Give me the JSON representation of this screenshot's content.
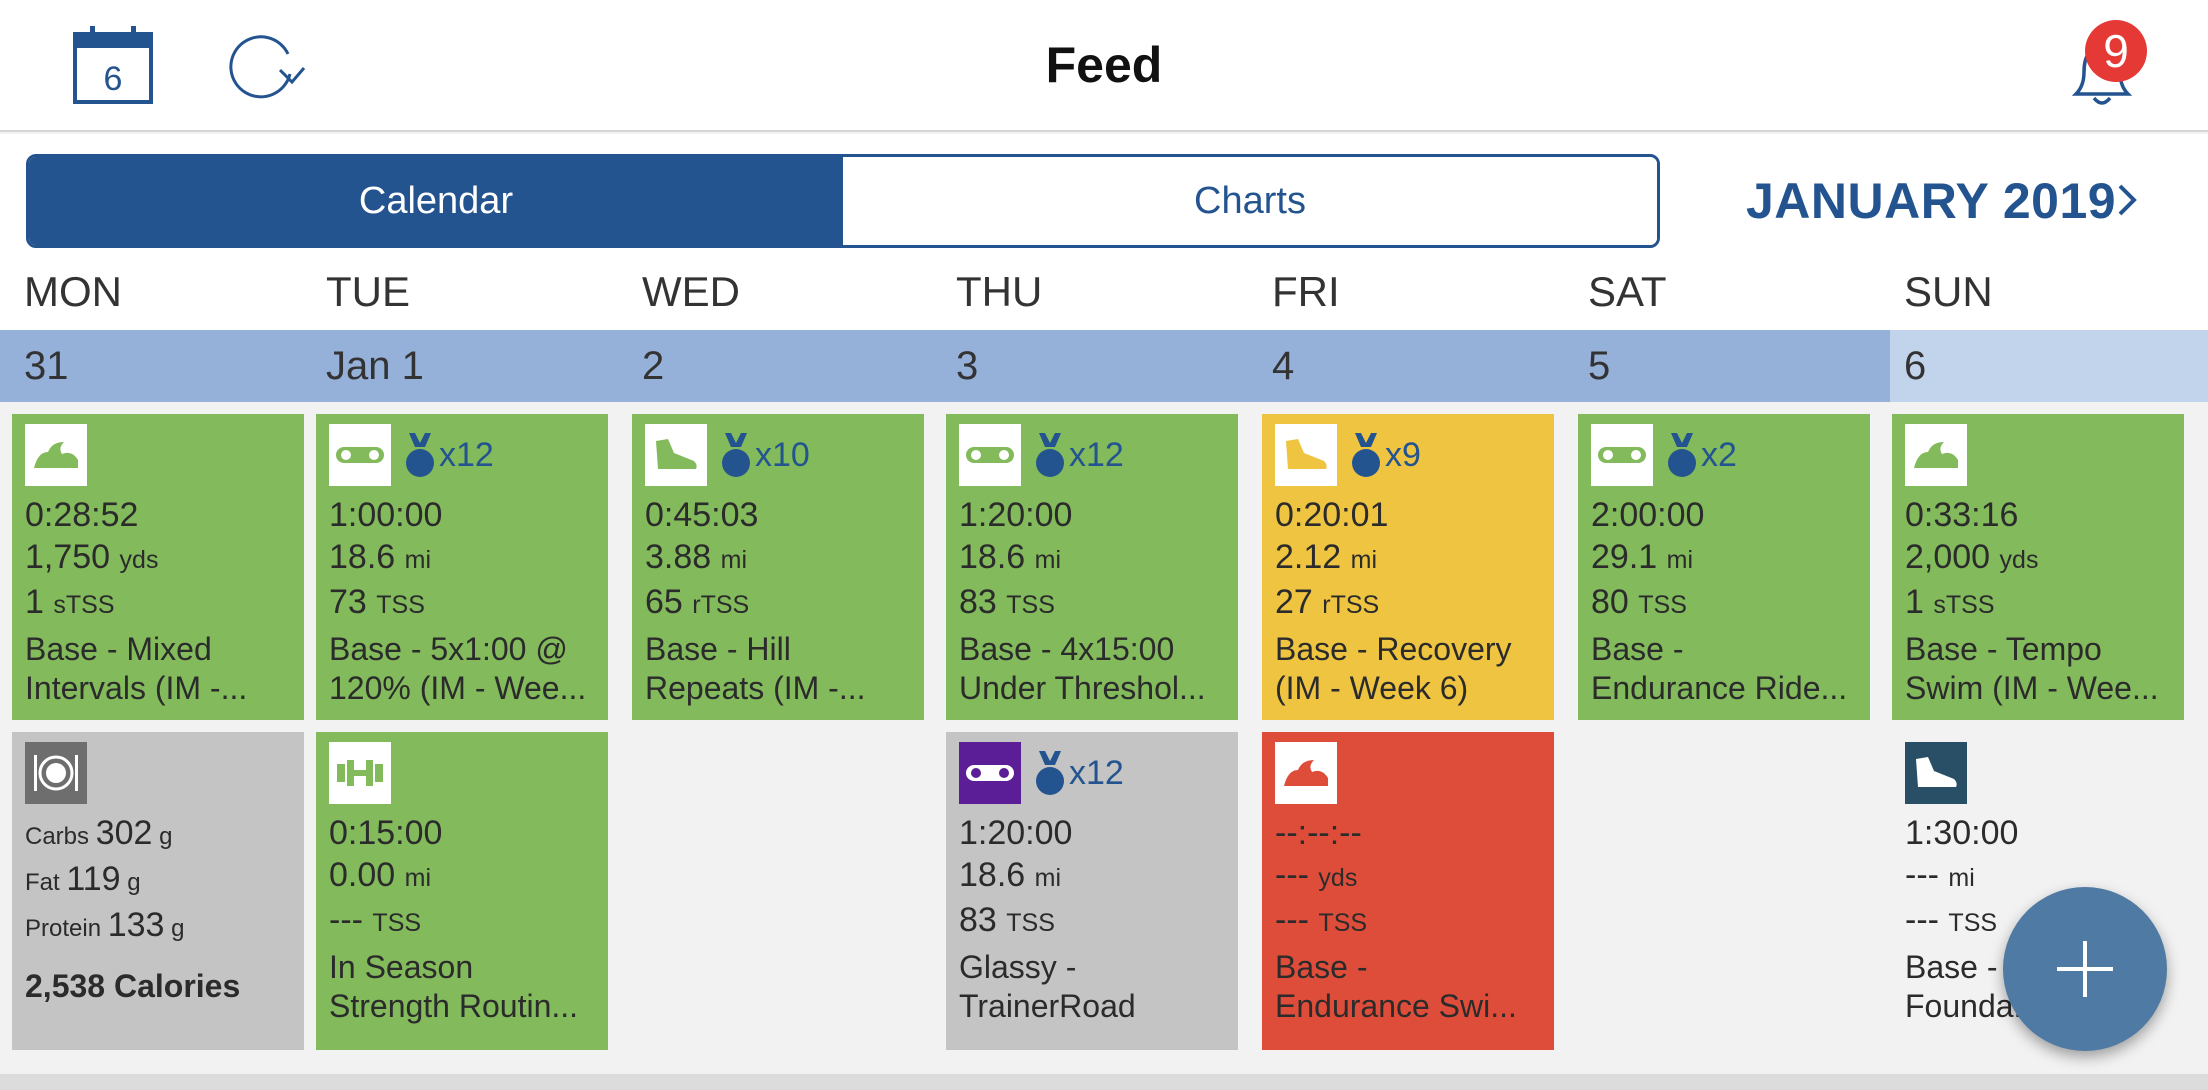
{
  "header": {
    "title": "Feed",
    "calendar_icon_day": "6",
    "notification_count": "9"
  },
  "segments": {
    "calendar": "Calendar",
    "charts": "Charts"
  },
  "month": {
    "label": "JANUARY 2019"
  },
  "days": [
    "MON",
    "TUE",
    "WED",
    "THU",
    "FRI",
    "SAT",
    "SUN"
  ],
  "dates": [
    "31",
    "Jan 1",
    "2",
    "3",
    "4",
    "5",
    "6"
  ],
  "row1": [
    {
      "sport": "swim",
      "medal": "",
      "duration": "0:28:52",
      "distance": "1,750",
      "distance_unit": "yds",
      "load": "1",
      "load_unit": "sTSS",
      "title1": "Base - Mixed",
      "title2": "Intervals (IM -..."
    },
    {
      "sport": "bike",
      "medal": "x12",
      "duration": "1:00:00",
      "distance": "18.6",
      "distance_unit": "mi",
      "load": "73",
      "load_unit": "TSS",
      "title1": "Base - 5x1:00 @",
      "title2": "120% (IM - Wee..."
    },
    {
      "sport": "run",
      "medal": "x10",
      "duration": "0:45:03",
      "distance": "3.88",
      "distance_unit": "mi",
      "load": "65",
      "load_unit": "rTSS",
      "title1": "Base - Hill",
      "title2": "Repeats (IM -..."
    },
    {
      "sport": "bike",
      "medal": "x12",
      "duration": "1:20:00",
      "distance": "18.6",
      "distance_unit": "mi",
      "load": "83",
      "load_unit": "TSS",
      "title1": "Base - 4x15:00",
      "title2": "Under Threshol..."
    },
    {
      "sport": "run",
      "medal": "x9",
      "duration": "0:20:01",
      "distance": "2.12",
      "distance_unit": "mi",
      "load": "27",
      "load_unit": "rTSS",
      "title1": "Base - Recovery",
      "title2": "(IM - Week 6)"
    },
    {
      "sport": "bike",
      "medal": "x2",
      "duration": "2:00:00",
      "distance": "29.1",
      "distance_unit": "mi",
      "load": "80",
      "load_unit": "TSS",
      "title1": "Base -",
      "title2": "Endurance Ride..."
    },
    {
      "sport": "swim",
      "medal": "",
      "duration": "0:33:16",
      "distance": "2,000",
      "distance_unit": "yds",
      "load": "1",
      "load_unit": "sTSS",
      "title1": "Base - Tempo",
      "title2": "Swim (IM - Wee..."
    }
  ],
  "nutrition": {
    "carbs_label": "Carbs",
    "carbs": "302",
    "carbs_unit": "g",
    "fat_label": "Fat",
    "fat": "119",
    "fat_unit": "g",
    "protein_label": "Protein",
    "protein": "133",
    "protein_unit": "g",
    "calories": "2,538 Calories"
  },
  "row2": {
    "tue": {
      "sport": "strength",
      "duration": "0:15:00",
      "distance": "0.00",
      "distance_unit": "mi",
      "load": "---",
      "load_unit": "TSS",
      "title1": "In Season",
      "title2": "Strength Routin..."
    },
    "thu": {
      "sport": "bike",
      "medal": "x12",
      "duration": "1:20:00",
      "distance": "18.6",
      "distance_unit": "mi",
      "load": "83",
      "load_unit": "TSS",
      "title1": "Glassy -",
      "title2": "TrainerRoad"
    },
    "fri": {
      "sport": "swim",
      "duration": "--:--:--",
      "distance": "---",
      "distance_unit": "yds",
      "load": "---",
      "load_unit": "TSS",
      "title1": "Base -",
      "title2": "Endurance Swi..."
    },
    "sun": {
      "sport": "run",
      "duration": "1:30:00",
      "distance": "---",
      "distance_unit": "mi",
      "load": "---",
      "load_unit": "TSS",
      "title1": "Base -",
      "title2": "Founda... 0"
    }
  },
  "colors": {
    "primary": "#24548f",
    "completed": "#82ba5c",
    "partial": "#eec441",
    "missed": "#de4d3a",
    "planned": "#c4c4c4",
    "fab": "#4e7aa3"
  }
}
